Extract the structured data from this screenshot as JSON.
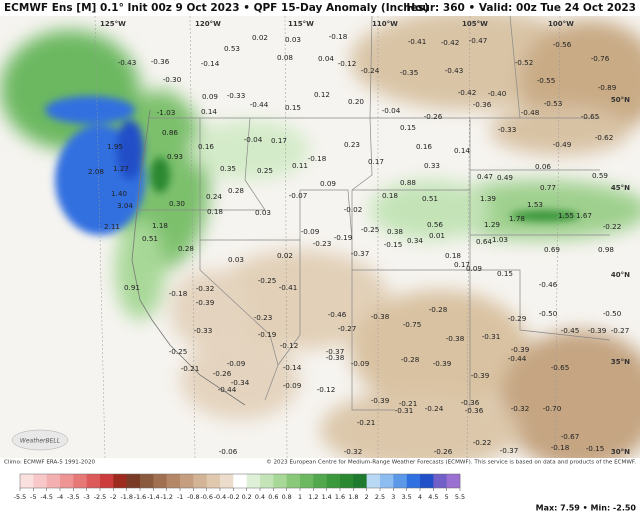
{
  "header": {
    "title": "ECMWF Ens [M] 0.1° Init 00z 9 Oct 2023 • QPF 15-Day Anomaly (Inches)",
    "valid": "Hour: 360 • Valid: 00z Tue 24 Oct 2023"
  },
  "longitudes": [
    "125°W",
    "120°W",
    "115°W",
    "110°W",
    "105°W",
    "100°W"
  ],
  "latitudes": [
    "50°N",
    "45°N",
    "40°N",
    "35°N",
    "30°N"
  ],
  "map_labels": [
    "0.53",
    "0.02",
    "0.03",
    "-0.18",
    "-0.41",
    "-0.42",
    "-0.47",
    "-0.56",
    "-0.43",
    "-0.36",
    "-0.14",
    "0.08",
    "0.04",
    "-0.12",
    "-0.24",
    "-0.35",
    "-0.43",
    "-0.52",
    "-0.76",
    "-0.30",
    "-0.55",
    "0.09",
    "-0.33",
    "0.12",
    "0.20",
    "-0.42",
    "-0.40",
    "-0.89",
    "0.15",
    "-0.44",
    "-0.36",
    "-0.53",
    "-1.03",
    "0.14",
    "-0.04",
    "-0.26",
    "-0.48",
    "-0.65",
    "0.86",
    "0.15",
    "-0.33",
    "-0.62",
    "1.95",
    "0.16",
    "-0.04",
    "0.17",
    "0.23",
    "0.16",
    "0.14",
    "-0.49",
    "0.93",
    "-0.18",
    "0.17",
    "0.33",
    "0.06",
    "1.27",
    "2.08",
    "0.11",
    "0.35",
    "0.25",
    "0.47",
    "0.49",
    "0.59",
    "0.28",
    "0.09",
    "0.88",
    "0.77",
    "1.40",
    "0.24",
    "-0.07",
    "0.18",
    "0.51",
    "1.39",
    "1.53",
    "3.04",
    "0.30",
    "0.18",
    "0.03",
    "-0.02",
    "1.78",
    "1.55",
    "1.67",
    "2.11",
    "1.18",
    "0.56",
    "1.29",
    "-0.22",
    "-0.25",
    "0.38",
    "-0.09",
    "0.51",
    "0.64",
    "1.03",
    "0.69",
    "0.98",
    "0.28",
    "0.03",
    "0.02",
    "0.01",
    "0.34",
    "-0.19",
    "-0.23",
    "-0.15",
    "0.15",
    "0.91",
    "-0.25",
    "-0.41",
    "-0.37",
    "0.18",
    "0.17",
    "0.09",
    "-0.46",
    "-0.18",
    "-0.32",
    "-0.39",
    "-0.23",
    "-0.46",
    "-0.38",
    "-0.28",
    "-0.29",
    "-0.50",
    "-0.50",
    "-0.33",
    "-0.19",
    "-0.27",
    "-0.75",
    "-0.45",
    "-0.39",
    "-0.27",
    "-0.38",
    "-0.31",
    "-0.12",
    "-0.37",
    "-0.38",
    "-0.09",
    "-0.28",
    "-0.39",
    "-0.39",
    "-0.44",
    "-0.25",
    "-0.09",
    "-0.14",
    "-0.21",
    "-0.26",
    "-0.65",
    "-0.34",
    "-0.39",
    "-0.09",
    "-0.12",
    "-0.44",
    "-0.39",
    "-0.21",
    "-0.36",
    "-0.36",
    "-0.24",
    "-0.31",
    "-0.32",
    "-0.70",
    "-0.21",
    "-0.22",
    "-0.37",
    "-0.67",
    "-0.06",
    "-0.32",
    "-0.26",
    "-0.18",
    "-0.15"
  ],
  "footer": {
    "climo": "Climo: ECMWF ERA-5 1991-2020",
    "credit": "© 2023 European Centre for Medium-Range Weather Forecasts (ECMWF). This service is based on data and products of the ECMWF.",
    "stats": "Max: 7.59 • Min: -2.50",
    "brand": "WeatherBELL"
  },
  "colorbar": {
    "ticks": [
      -5.5,
      -5,
      -4.5,
      -4,
      -3.5,
      -3,
      -2.5,
      -2,
      -1.8,
      -1.6,
      -1.4,
      -1.2,
      -1,
      -0.8,
      -0.6,
      -0.4,
      -0.2,
      0.2,
      0.4,
      0.6,
      0.8,
      1,
      1.2,
      1.4,
      1.6,
      1.8,
      2,
      2.5,
      3,
      3.5,
      4,
      4.5,
      5,
      5.5
    ],
    "colors": [
      "#fbe0e0",
      "#f8c8c8",
      "#f4b0b0",
      "#ee9494",
      "#e67878",
      "#dc5a5a",
      "#cc3c3c",
      "#9c2a1e",
      "#7a3b26",
      "#8a5a3e",
      "#a07050",
      "#b48866",
      "#c49e7e",
      "#d4b496",
      "#e0c8ae",
      "#ecdccb",
      "#ffffff",
      "#dff0d8",
      "#c4e4b8",
      "#a8d898",
      "#88c878",
      "#6cb860",
      "#52a84c",
      "#3c983c",
      "#2a8830",
      "#1e7a2e",
      "#b8d8f4",
      "#8cbcf0",
      "#5c98e8",
      "#3070e0",
      "#2050c8",
      "#7060c8",
      "#9a70d0"
    ]
  }
}
